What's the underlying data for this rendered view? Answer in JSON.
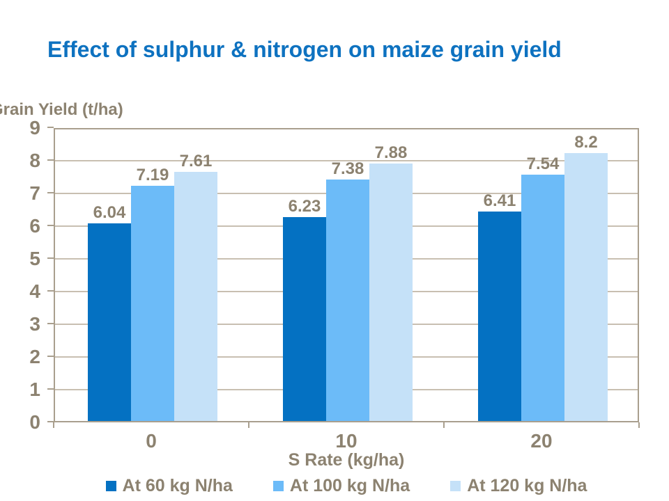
{
  "chart_data": {
    "type": "bar",
    "title": "Effect of sulphur & nitrogen on maize grain yield",
    "ylabel": "Grain Yield (t/ha)",
    "xlabel": "S Rate (kg/ha)",
    "categories": [
      "0",
      "10",
      "20"
    ],
    "series": [
      {
        "name": "At 60 kg N/ha",
        "color": "#0471C2",
        "values": [
          6.04,
          6.23,
          6.41
        ]
      },
      {
        "name": "At 100 kg N/ha",
        "color": "#6CBBF8",
        "values": [
          7.19,
          7.38,
          7.54
        ]
      },
      {
        "name": "At 120 kg N/ha",
        "color": "#C5E1F8",
        "values": [
          7.61,
          7.88,
          8.2
        ]
      }
    ],
    "ylim": [
      0,
      9
    ],
    "ytick_step": 1,
    "yticks": [
      "0",
      "1",
      "2",
      "3",
      "4",
      "5",
      "6",
      "7",
      "8",
      "9"
    ],
    "grid": true,
    "data_labels": true,
    "legend_position": "bottom"
  },
  "colors": {
    "title_text": "#0E72C0",
    "axis_text": "#8C8270",
    "axis_line": "#A99F8E",
    "gridline": "#C8BFB1",
    "background": "#FFFFFF"
  }
}
